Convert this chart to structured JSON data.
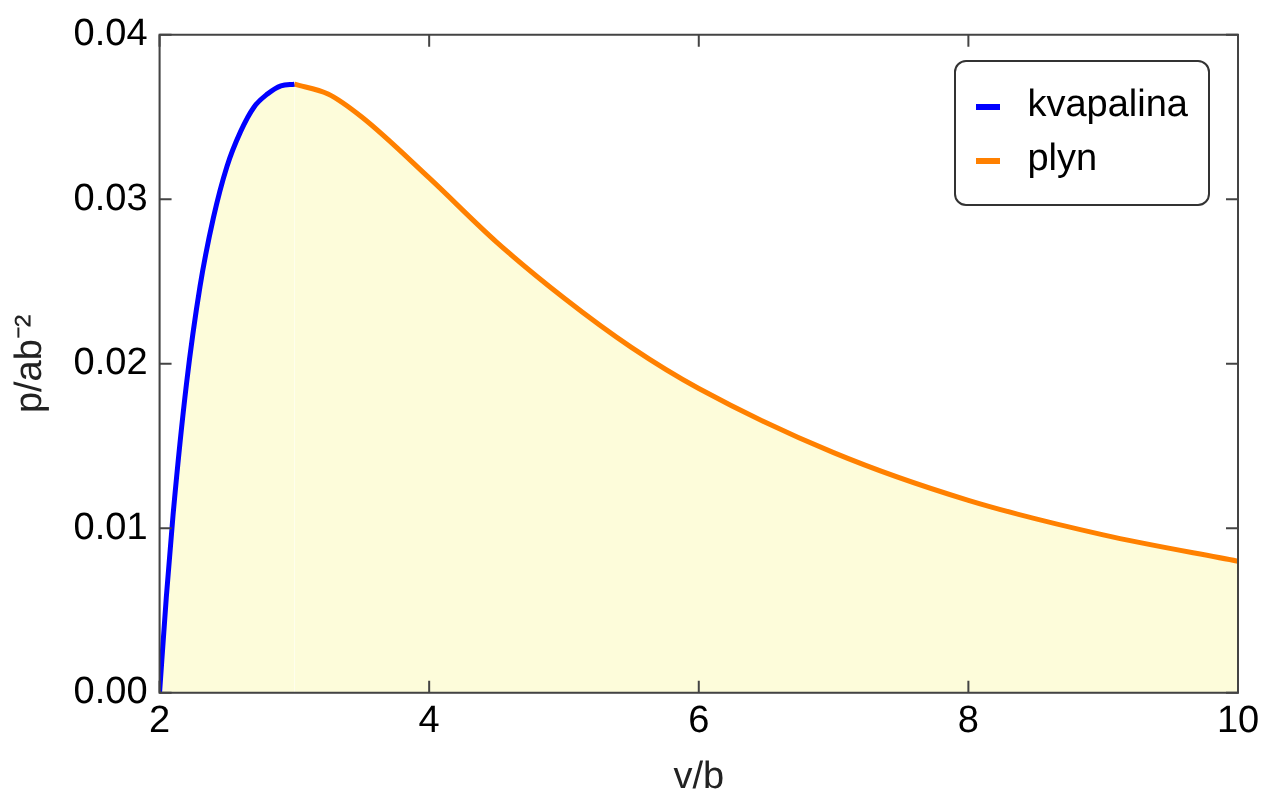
{
  "chart_data": {
    "type": "area",
    "xlabel": "v/b",
    "ylabel": "p/ab⁻²",
    "xlim": [
      2,
      10
    ],
    "xticks": [
      2,
      4,
      6,
      8,
      10
    ],
    "ylim": [
      0,
      0.04
    ],
    "yticks": [
      {
        "value": 0,
        "label": "0.00"
      },
      {
        "value": 0.01,
        "label": "0.01"
      },
      {
        "value": 0.02,
        "label": "0.02"
      },
      {
        "value": 0.03,
        "label": "0.03"
      },
      {
        "value": 0.04,
        "label": "0.04"
      }
    ],
    "legend": "top right",
    "grid": false,
    "series": [
      {
        "name": "kvapalina",
        "color": "#0000ff",
        "x": [
          2,
          2.05,
          2.1,
          2.2,
          2.3,
          2.4,
          2.5,
          2.6,
          2.7,
          2.8,
          2.9,
          3
        ],
        "values": [
          0,
          0.0058,
          0.0108,
          0.0188,
          0.0247,
          0.0289,
          0.032,
          0.0341,
          0.0356,
          0.0364,
          0.0369,
          0.037
        ]
      },
      {
        "name": "plyn",
        "color": "#ff8000",
        "x": [
          3,
          3.25,
          3.5,
          4,
          4.5,
          5,
          5.5,
          6,
          7,
          8,
          9,
          10
        ],
        "values": [
          0.037,
          0.0364,
          0.035,
          0.0313,
          0.0274,
          0.024,
          0.021,
          0.0185,
          0.0146,
          0.0117,
          0.0096,
          0.008
        ]
      }
    ]
  }
}
